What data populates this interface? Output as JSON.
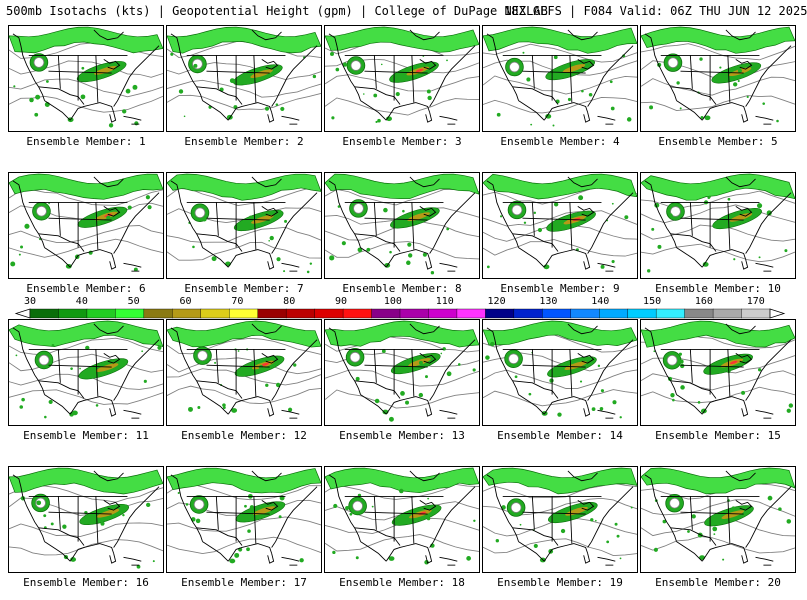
{
  "header": {
    "title_left": "500mb Isotachs (kts) | Geopotential Height (gpm) | College of DuPage NEXLAB",
    "title_right": "18Z GEFS | F084 Valid: 06Z THU JUN 12 2025"
  },
  "colorbar": {
    "tick_labels": [
      "30",
      "40",
      "50",
      "60",
      "70",
      "80",
      "90",
      "100",
      "110",
      "120",
      "130",
      "140",
      "150",
      "160",
      "170"
    ],
    "colors": [
      "#0a6e0a",
      "#119911",
      "#22cc22",
      "#33ff33",
      "#8a7a12",
      "#b59a17",
      "#dccc1a",
      "#ffff33",
      "#990000",
      "#bb0000",
      "#dd0000",
      "#ff1111",
      "#880088",
      "#aa00aa",
      "#cc00cc",
      "#ff33ff",
      "#000088",
      "#0022cc",
      "#0055ff",
      "#1188ff",
      "#00aaff",
      "#00ccff",
      "#33eeff",
      "#888888",
      "#aaaaaa",
      "#cccccc"
    ]
  },
  "map_style": {
    "land_color": "#ffffff",
    "coast_color": "#000000",
    "height_contour_color": "#808080",
    "isotach_colors": [
      "#0a6e0a",
      "#22aa22",
      "#44dd44",
      "#b59a17",
      "#ff3333"
    ]
  },
  "members": [
    {
      "label": "Ensemble Member: 1"
    },
    {
      "label": "Ensemble Member: 2"
    },
    {
      "label": "Ensemble Member: 3"
    },
    {
      "label": "Ensemble Member: 4"
    },
    {
      "label": "Ensemble Member: 5"
    },
    {
      "label": "Ensemble Member: 6"
    },
    {
      "label": "Ensemble Member: 7"
    },
    {
      "label": "Ensemble Member: 8"
    },
    {
      "label": "Ensemble Member: 9"
    },
    {
      "label": "Ensemble Member: 10"
    },
    {
      "label": "Ensemble Member: 11"
    },
    {
      "label": "Ensemble Member: 12"
    },
    {
      "label": "Ensemble Member: 13"
    },
    {
      "label": "Ensemble Member: 14"
    },
    {
      "label": "Ensemble Member: 15"
    },
    {
      "label": "Ensemble Member: 16"
    },
    {
      "label": "Ensemble Member: 17"
    },
    {
      "label": "Ensemble Member: 18"
    },
    {
      "label": "Ensemble Member: 19"
    },
    {
      "label": "Ensemble Member: 20"
    }
  ]
}
